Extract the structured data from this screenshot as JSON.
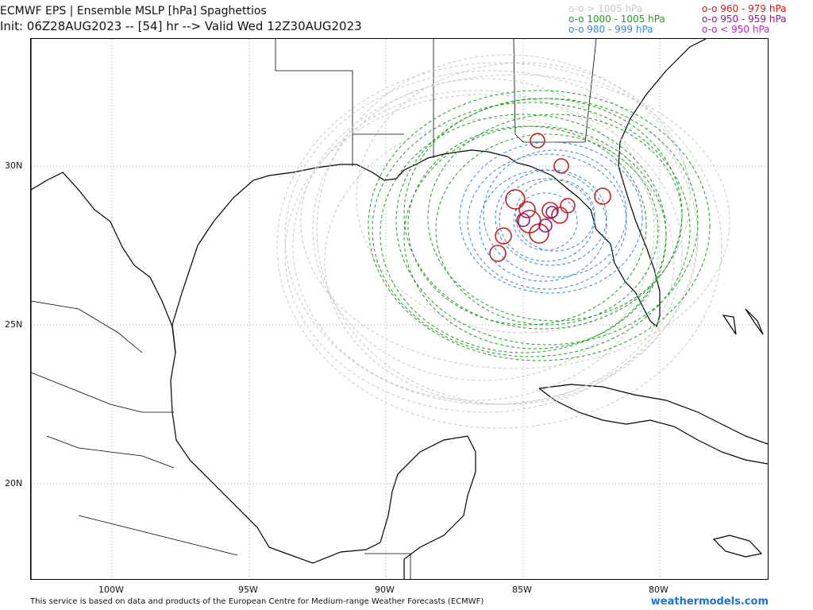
{
  "header": {
    "title": "ECMWF EPS | Ensemble MSLP [hPa] Spaghettios",
    "subtitle": "Init: 06Z28AUG2023 -- [54] hr --> Valid Wed 12Z30AUG2023"
  },
  "legend": [
    {
      "label": "o-o > 1005 hPa",
      "color": "#c8c8c8"
    },
    {
      "label": "o-o 1000 - 1005 hPa",
      "color": "#1e9e1e"
    },
    {
      "label": "o-o 980 - 999 hPa",
      "color": "#3a86d6"
    },
    {
      "label": "o-o 960 - 979 hPa",
      "color": "#c81e1e"
    },
    {
      "label": "o-o 950 - 959 hPa",
      "color": "#8a1a8a"
    },
    {
      "label": "o-o < 950 hPa",
      "color": "#c21fc2"
    }
  ],
  "axes": {
    "lat_ticks": [
      "30N",
      "25N",
      "20N"
    ],
    "lon_ticks": [
      "100W",
      "95W",
      "90W",
      "85W",
      "80W"
    ]
  },
  "footer": {
    "credit": "This service is based on data and products of the European Centre for Medium-range Weather Forecasts (ECMWF)",
    "brand": "weathermodels.com"
  }
}
